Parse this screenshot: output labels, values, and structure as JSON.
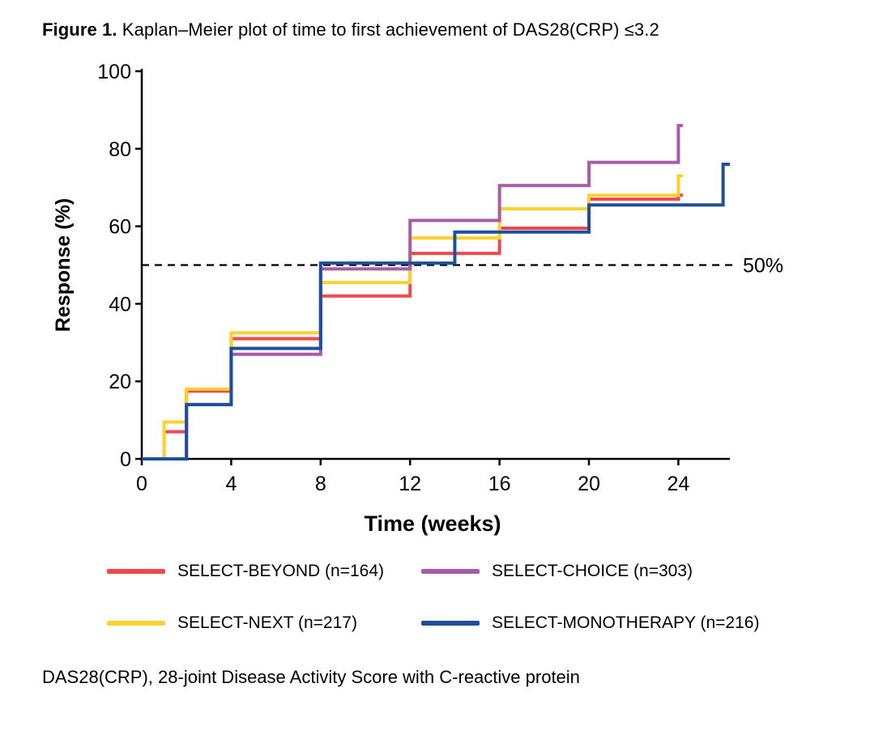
{
  "figure_title": {
    "prefix": "Figure 1.",
    "text": " Kaplan–Meier plot of time to first achievement of DAS28(CRP) ≤3.2"
  },
  "footnote": "DAS28(CRP), 28-joint Disease Activity Score with C-reactive protein",
  "chart_data": {
    "type": "line",
    "variant": "kaplan-meier-step",
    "title": "Figure 1. Kaplan–Meier plot of time to first achievement of DAS28(CRP) ≤3.2",
    "xlabel": "Time (weeks)",
    "ylabel": "Response (%)",
    "xlim": [
      0,
      26.5
    ],
    "ylim": [
      0,
      100
    ],
    "xticks": [
      0,
      4,
      8,
      12,
      16,
      20,
      24
    ],
    "yticks": [
      0,
      20,
      40,
      60,
      80,
      100
    ],
    "grid": false,
    "legend_position": "bottom",
    "reference_line": {
      "y": 50,
      "label": "50%",
      "style": "dashed",
      "color": "#000000"
    },
    "series": [
      {
        "name": "SELECT-BEYOND (n=164)",
        "color": "#F0484F",
        "steps": [
          [
            0,
            0
          ],
          [
            1,
            7
          ],
          [
            2,
            17.5
          ],
          [
            4,
            31
          ],
          [
            8,
            42
          ],
          [
            12,
            53
          ],
          [
            16,
            59.5
          ],
          [
            20,
            67
          ],
          [
            24,
            68
          ]
        ],
        "end": 24.2
      },
      {
        "name": "SELECT-NEXT (n=217)",
        "color": "#FFD02E",
        "steps": [
          [
            0,
            0
          ],
          [
            1,
            9.5
          ],
          [
            2,
            18
          ],
          [
            4,
            32.5
          ],
          [
            8,
            45.5
          ],
          [
            12,
            57
          ],
          [
            16,
            64.5
          ],
          [
            20,
            68
          ],
          [
            24,
            73
          ]
        ],
        "end": 24.2
      },
      {
        "name": "SELECT-CHOICE (n=303)",
        "color": "#A85BA6",
        "steps": [
          [
            0,
            0
          ],
          [
            2,
            14
          ],
          [
            4,
            27
          ],
          [
            8,
            49
          ],
          [
            12,
            61.5
          ],
          [
            16,
            70.5
          ],
          [
            20,
            76.5
          ],
          [
            24,
            86
          ]
        ],
        "end": 24.2
      },
      {
        "name": "SELECT-MONOTHERAPY (n=216)",
        "color": "#1E4F9C",
        "steps": [
          [
            0,
            0
          ],
          [
            2,
            14
          ],
          [
            4,
            28.5
          ],
          [
            8,
            50.5
          ],
          [
            14,
            58.5
          ],
          [
            20,
            65.5
          ],
          [
            26,
            76
          ]
        ],
        "end": 26.3
      }
    ]
  },
  "legend": {
    "items": [
      {
        "label": "SELECT-BEYOND (n=164)",
        "color": "#F0484F"
      },
      {
        "label": "SELECT-CHOICE (n=303)",
        "color": "#A85BA6"
      },
      {
        "label": "SELECT-NEXT (n=217)",
        "color": "#FFD02E"
      },
      {
        "label": "SELECT-MONOTHERAPY (n=216)",
        "color": "#1E4F9C"
      }
    ]
  }
}
